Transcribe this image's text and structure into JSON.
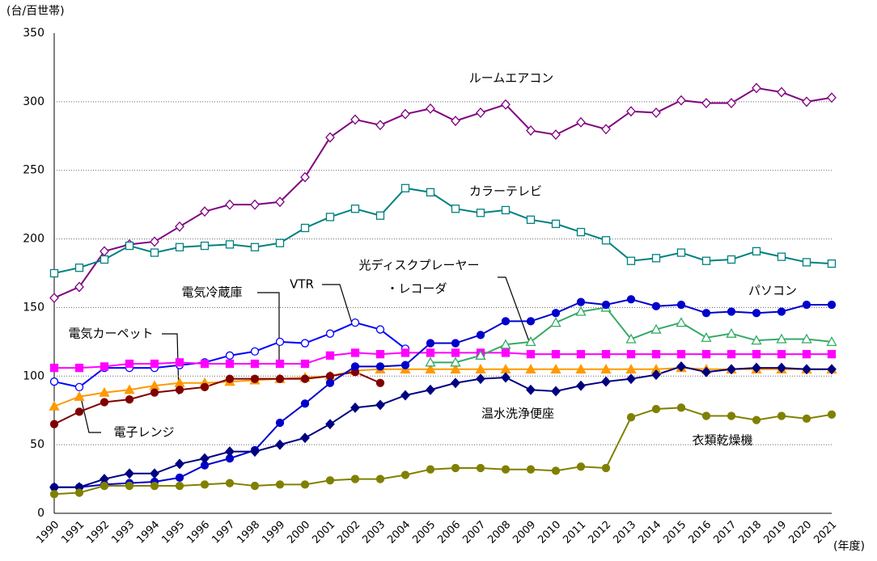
{
  "chart_data": {
    "type": "line",
    "y_unit_label": "(台/百世帯)",
    "x_unit_label": "(年度)",
    "categories": [
      "1990",
      "1991",
      "1992",
      "1993",
      "1994",
      "1995",
      "1996",
      "1997",
      "1998",
      "1999",
      "2000",
      "2001",
      "2002",
      "2003",
      "2004",
      "2005",
      "2006",
      "2007",
      "2008",
      "2009",
      "2010",
      "2011",
      "2012",
      "2013",
      "2014",
      "2015",
      "2016",
      "2017",
      "2018",
      "2019",
      "2020",
      "2021"
    ],
    "ylim": [
      0,
      350
    ],
    "yticks": [
      0,
      50,
      100,
      150,
      200,
      250,
      300,
      350
    ],
    "grid": true,
    "series": [
      {
        "name": "ルームエアコン",
        "color": "#800080",
        "marker": "diamond-open",
        "values": [
          157,
          165,
          191,
          196,
          198,
          209,
          220,
          225,
          225,
          227,
          245,
          274,
          287,
          283,
          291,
          295,
          286,
          292,
          298,
          279,
          276,
          285,
          280,
          293,
          292,
          301,
          299,
          299,
          310,
          307,
          300,
          303
        ]
      },
      {
        "name": "カラーテレビ",
        "color": "#008080",
        "marker": "square-open",
        "values": [
          175,
          179,
          185,
          195,
          190,
          194,
          195,
          196,
          194,
          197,
          208,
          216,
          222,
          217,
          237,
          234,
          222,
          219,
          221,
          214,
          211,
          205,
          199,
          184,
          186,
          190,
          184,
          185,
          191,
          187,
          183,
          182
        ]
      },
      {
        "name": "VTR",
        "color": "#0000ff",
        "marker": "circle-open",
        "values": [
          96,
          92,
          106,
          106,
          106,
          108,
          110,
          115,
          118,
          125,
          124,
          131,
          139,
          134,
          120,
          null,
          null,
          null,
          null,
          null,
          null,
          null,
          null,
          null,
          null,
          null,
          null,
          null,
          null,
          null,
          null,
          null
        ]
      },
      {
        "name": "電気冷蔵庫",
        "color": "#ff00ff",
        "marker": "square",
        "values": [
          106,
          106,
          107,
          109,
          109,
          110,
          109,
          109,
          109,
          109,
          109,
          115,
          117,
          116,
          117,
          117,
          117,
          117,
          117,
          116,
          116,
          116,
          116,
          116,
          116,
          116,
          116,
          116,
          116,
          116,
          116,
          116
        ]
      },
      {
        "name": "電子レンジ",
        "color": "#ff9900",
        "marker": "triangle",
        "values": [
          78,
          85,
          88,
          90,
          93,
          95,
          95,
          96,
          97,
          98,
          99,
          100,
          104,
          105,
          105,
          105,
          105,
          105,
          105,
          105,
          105,
          105,
          105,
          105,
          105,
          106,
          105,
          105,
          105,
          105,
          105,
          105
        ]
      },
      {
        "name": "電気カーペット",
        "color": "#800000",
        "marker": "circle",
        "values": [
          65,
          74,
          81,
          83,
          88,
          90,
          92,
          98,
          98,
          98,
          98,
          100,
          103,
          95,
          null,
          null,
          null,
          null,
          null,
          null,
          null,
          null,
          null,
          null,
          null,
          null,
          null,
          null,
          null,
          null,
          null,
          null
        ]
      },
      {
        "name": "光ディスクプレーヤー\n・レコーダ",
        "color": "#33aa66",
        "marker": "triangle-open",
        "values": [
          null,
          null,
          null,
          null,
          null,
          null,
          null,
          null,
          null,
          null,
          null,
          null,
          null,
          null,
          null,
          110,
          110,
          115,
          123,
          125,
          139,
          147,
          150,
          127,
          134,
          139,
          128,
          131,
          126,
          127,
          127,
          125
        ]
      },
      {
        "name": "パソコン",
        "color": "#0000cd",
        "marker": "circle",
        "values": [
          19,
          19,
          21,
          22,
          23,
          26,
          35,
          40,
          46,
          66,
          80,
          95,
          107,
          107,
          108,
          124,
          124,
          130,
          140,
          140,
          146,
          154,
          152,
          156,
          151,
          152,
          146,
          147,
          146,
          147,
          152,
          152
        ]
      },
      {
        "name": "温水洗浄便座",
        "color": "#000080",
        "marker": "diamond",
        "values": [
          19,
          19,
          25,
          29,
          29,
          36,
          40,
          45,
          45,
          50,
          55,
          65,
          77,
          79,
          86,
          90,
          95,
          98,
          99,
          90,
          89,
          93,
          96,
          98,
          101,
          107,
          103,
          105,
          106,
          106,
          105,
          105
        ]
      },
      {
        "name": "衣類乾燥機",
        "color": "#808000",
        "marker": "circle",
        "values": [
          14,
          15,
          20,
          20,
          20,
          20,
          21,
          22,
          20,
          21,
          21,
          24,
          25,
          25,
          28,
          32,
          33,
          33,
          32,
          32,
          31,
          34,
          33,
          70,
          76,
          77,
          71,
          71,
          68,
          71,
          69,
          72
        ]
      }
    ]
  }
}
